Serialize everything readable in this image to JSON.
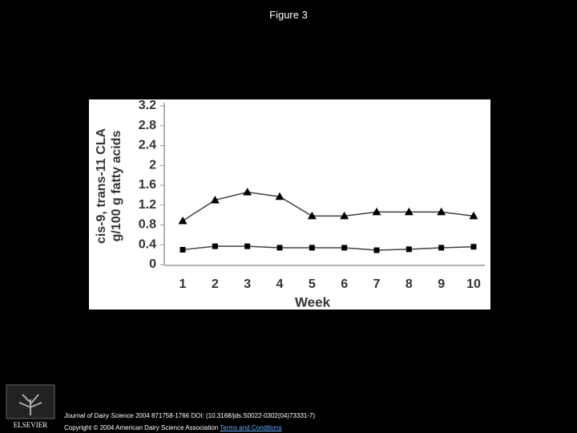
{
  "page_title": "Figure 3",
  "logo_text": "ELSEVIER",
  "footer": {
    "journal": "Journal of Dairy Science",
    "citation": "2004 871758-1766 DOI: (10.3168/jds.S0022-0302(04)73331-7)",
    "copyright": "Copyright © 2004 American Dairy Science Association",
    "link": "Terms and Conditions"
  },
  "chart_data": {
    "type": "line",
    "ylabel": [
      "cis-9, trans-11 CLA",
      "g/100 g fatty acids"
    ],
    "xlabel": "Week",
    "categories": [
      "1",
      "2",
      "3",
      "4",
      "5",
      "6",
      "7",
      "8",
      "9",
      "10"
    ],
    "series": [
      {
        "color": "#000000",
        "marker": "triangle",
        "values": [
          0.88,
          1.3,
          1.46,
          1.37,
          0.98,
          0.98,
          1.06,
          1.06,
          1.06,
          0.98
        ]
      },
      {
        "color": "#000000",
        "marker": "square",
        "values": [
          0.3,
          0.37,
          0.37,
          0.34,
          0.34,
          0.34,
          0.29,
          0.31,
          0.34,
          0.36
        ]
      }
    ],
    "ylim": [
      0,
      3.2
    ],
    "yticks": [
      0,
      0.4,
      0.8,
      1.2,
      1.6,
      2,
      2.4,
      2.8,
      3.2
    ],
    "grid": false
  }
}
